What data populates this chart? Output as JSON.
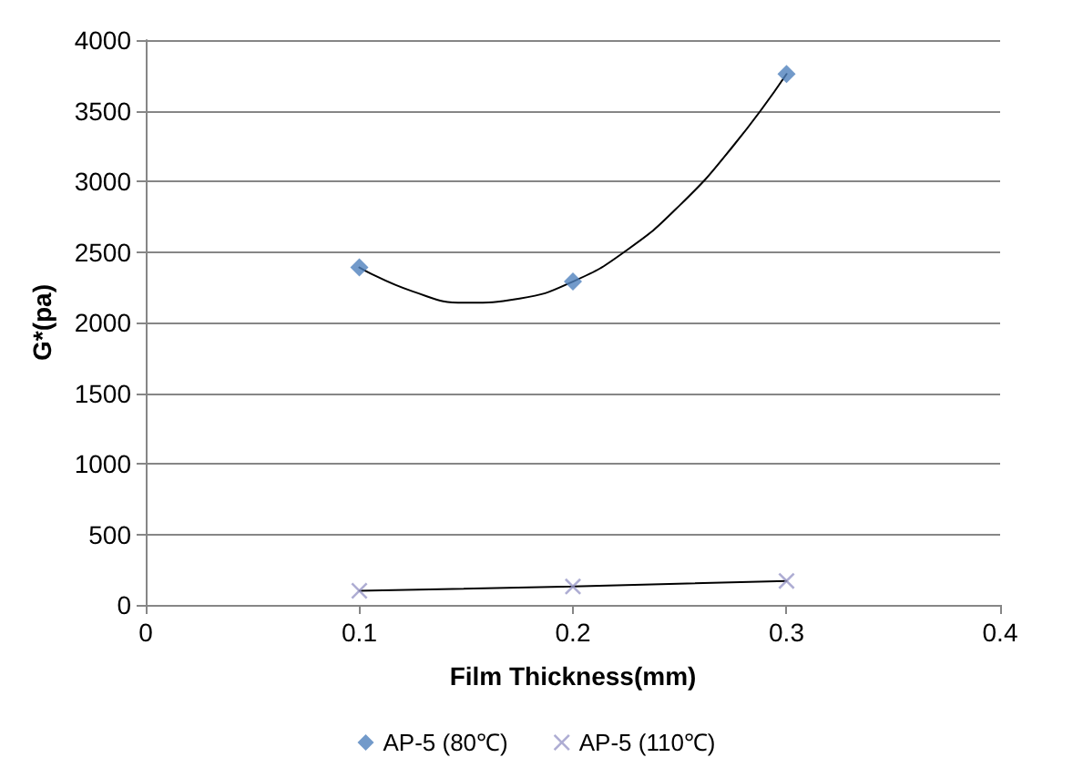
{
  "chart_data": {
    "type": "scatter",
    "xlabel": "Film Thickness(mm)",
    "ylabel": "G*(pa)",
    "xlim": [
      0,
      0.4
    ],
    "xticks": [
      0,
      0.1,
      0.2,
      0.3,
      0.4
    ],
    "ylim": [
      0,
      4000
    ],
    "yticks": [
      0,
      500,
      1000,
      1500,
      2000,
      2500,
      3000,
      3500,
      4000
    ],
    "grid": "y",
    "legend": "bottom",
    "series": [
      {
        "name": "AP-5 (80℃)",
        "color": "#4f81bd",
        "marker": "diamond",
        "x": [
          0.1,
          0.2,
          0.3
        ],
        "values": [
          2390,
          2290,
          3760
        ]
      },
      {
        "name": "AP-5 (110℃)",
        "color": "#9a98c8",
        "marker": "cross",
        "x": [
          0.1,
          0.2,
          0.3
        ],
        "values": [
          100,
          130,
          170
        ]
      },
      {
        "type": "line",
        "color": "#000000",
        "marker": "none",
        "x": [
          0.1,
          0.125,
          0.15,
          0.175,
          0.2,
          0.225,
          0.25,
          0.275,
          0.3
        ],
        "values": [
          2390,
          2220,
          2140,
          2170,
          2290,
          2510,
          2830,
          3250,
          3760
        ]
      },
      {
        "type": "line",
        "color": "#000000",
        "marker": "none",
        "x": [
          0.1,
          0.2,
          0.3
        ],
        "values": [
          100,
          130,
          170
        ]
      }
    ]
  }
}
